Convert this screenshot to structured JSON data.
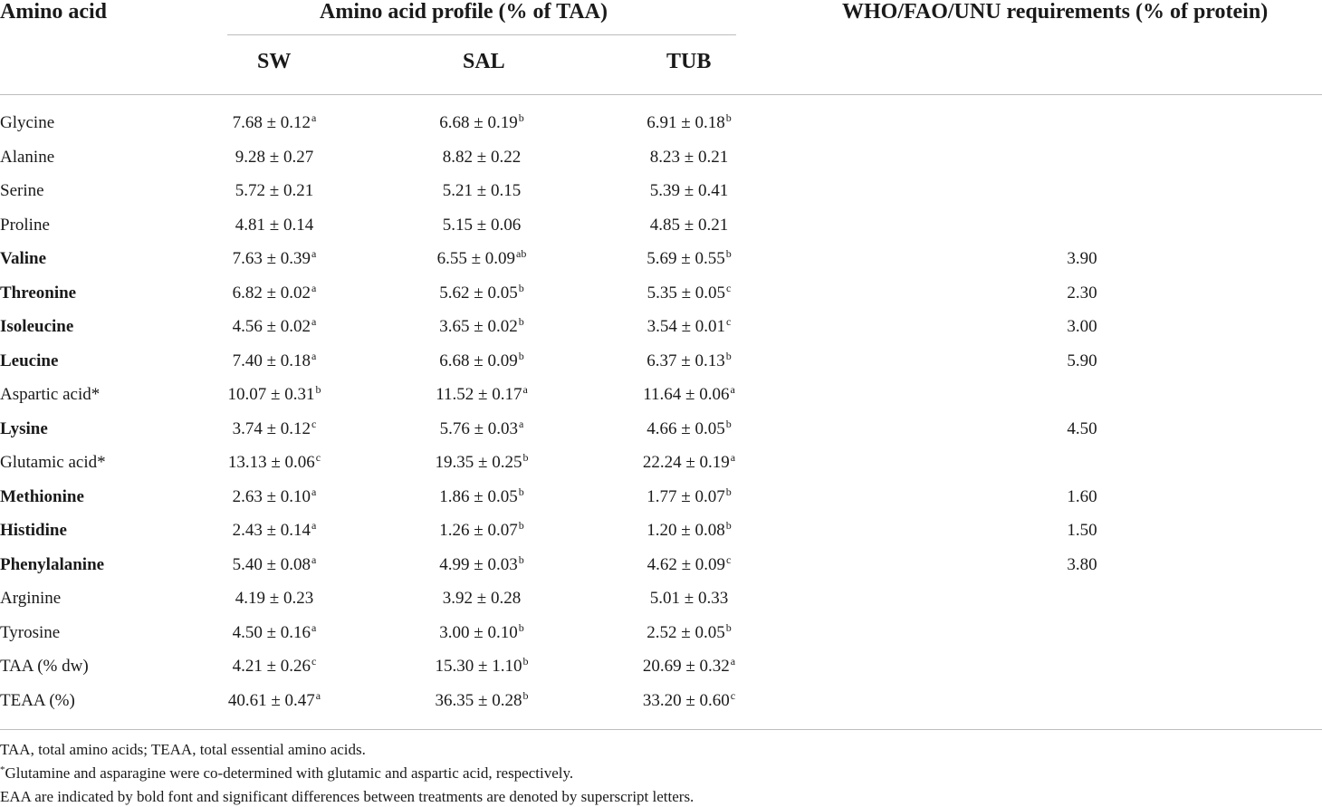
{
  "header": {
    "col_amino": "Amino acid",
    "col_profile": "Amino acid profile (% of TAA)",
    "col_who": "WHO/FAO/UNU requirements (% of protein)",
    "sub_sw": "SW",
    "sub_sal": "SAL",
    "sub_tub": "TUB"
  },
  "rows": [
    {
      "name": "Glycine",
      "bold": false,
      "sw": "7.68 ± 0.12",
      "sw_sup": "a",
      "sal": "6.68 ± 0.19",
      "sal_sup": "b",
      "tub": "6.91 ± 0.18",
      "tub_sup": "b",
      "req": ""
    },
    {
      "name": "Alanine",
      "bold": false,
      "sw": "9.28 ± 0.27",
      "sw_sup": "",
      "sal": "8.82 ± 0.22",
      "sal_sup": "",
      "tub": "8.23 ± 0.21",
      "tub_sup": "",
      "req": ""
    },
    {
      "name": "Serine",
      "bold": false,
      "sw": "5.72 ± 0.21",
      "sw_sup": "",
      "sal": "5.21 ± 0.15",
      "sal_sup": "",
      "tub": "5.39 ± 0.41",
      "tub_sup": "",
      "req": ""
    },
    {
      "name": "Proline",
      "bold": false,
      "sw": "4.81 ± 0.14",
      "sw_sup": "",
      "sal": "5.15 ± 0.06",
      "sal_sup": "",
      "tub": "4.85 ± 0.21",
      "tub_sup": "",
      "req": ""
    },
    {
      "name": "Valine",
      "bold": true,
      "sw": "7.63 ± 0.39",
      "sw_sup": "a",
      "sal": "6.55 ± 0.09",
      "sal_sup": "ab",
      "tub": "5.69 ± 0.55",
      "tub_sup": "b",
      "req": "3.90"
    },
    {
      "name": "Threonine",
      "bold": true,
      "sw": "6.82 ± 0.02",
      "sw_sup": "a",
      "sal": "5.62 ± 0.05",
      "sal_sup": "b",
      "tub": "5.35 ± 0.05",
      "tub_sup": "c",
      "req": "2.30"
    },
    {
      "name": "Isoleucine",
      "bold": true,
      "sw": "4.56 ± 0.02",
      "sw_sup": "a",
      "sal": "3.65 ± 0.02",
      "sal_sup": "b",
      "tub": "3.54 ± 0.01",
      "tub_sup": "c",
      "req": "3.00"
    },
    {
      "name": "Leucine",
      "bold": true,
      "sw": "7.40 ± 0.18",
      "sw_sup": "a",
      "sal": "6.68 ± 0.09",
      "sal_sup": "b",
      "tub": "6.37 ± 0.13",
      "tub_sup": "b",
      "req": "5.90"
    },
    {
      "name": "Aspartic acid*",
      "bold": false,
      "sw": "10.07 ± 0.31",
      "sw_sup": "b",
      "sal": "11.52 ± 0.17",
      "sal_sup": "a",
      "tub": "11.64 ± 0.06",
      "tub_sup": "a",
      "req": ""
    },
    {
      "name": "Lysine",
      "bold": true,
      "sw": "3.74 ± 0.12",
      "sw_sup": "c",
      "sal": "5.76 ± 0.03",
      "sal_sup": "a",
      "tub": "4.66 ± 0.05",
      "tub_sup": "b",
      "req": "4.50"
    },
    {
      "name": "Glutamic acid*",
      "bold": false,
      "sw": "13.13 ± 0.06",
      "sw_sup": "c",
      "sal": "19.35 ± 0.25",
      "sal_sup": "b",
      "tub": "22.24 ± 0.19",
      "tub_sup": "a",
      "req": ""
    },
    {
      "name": "Methionine",
      "bold": true,
      "sw": "2.63 ± 0.10",
      "sw_sup": "a",
      "sal": "1.86 ± 0.05",
      "sal_sup": "b",
      "tub": "1.77 ± 0.07",
      "tub_sup": "b",
      "req": "1.60"
    },
    {
      "name": "Histidine",
      "bold": true,
      "sw": "2.43 ± 0.14",
      "sw_sup": "a",
      "sal": "1.26 ± 0.07",
      "sal_sup": "b",
      "tub": "1.20 ± 0.08",
      "tub_sup": "b",
      "req": "1.50"
    },
    {
      "name": "Phenylalanine",
      "bold": true,
      "sw": "5.40 ± 0.08",
      "sw_sup": "a",
      "sal": "4.99 ± 0.03",
      "sal_sup": "b",
      "tub": "4.62 ± 0.09",
      "tub_sup": "c",
      "req": "3.80"
    },
    {
      "name": "Arginine",
      "bold": false,
      "sw": "4.19 ± 0.23",
      "sw_sup": "",
      "sal": "3.92 ± 0.28",
      "sal_sup": "",
      "tub": "5.01 ± 0.33",
      "tub_sup": "",
      "req": ""
    },
    {
      "name": "Tyrosine",
      "bold": false,
      "sw": "4.50 ± 0.16",
      "sw_sup": "a",
      "sal": "3.00 ± 0.10",
      "sal_sup": "b",
      "tub": "2.52 ± 0.05",
      "tub_sup": "b",
      "req": ""
    },
    {
      "name": "TAA (% dw)",
      "bold": false,
      "sw": "4.21 ± 0.26",
      "sw_sup": "c",
      "sal": "15.30 ± 1.10",
      "sal_sup": "b",
      "tub": "20.69 ± 0.32",
      "tub_sup": "a",
      "req": ""
    },
    {
      "name": "TEAA (%)",
      "bold": false,
      "sw": "40.61 ± 0.47",
      "sw_sup": "a",
      "sal": "36.35 ± 0.28",
      "sal_sup": "b",
      "tub": "33.20 ± 0.60",
      "tub_sup": "c",
      "req": ""
    }
  ],
  "footnotes": {
    "line1": "TAA, total amino acids; TEAA, total essential amino acids.",
    "line2_mark": "*",
    "line2": "Glutamine and asparagine were co-determined with glutamic and aspartic acid, respectively.",
    "line3": "EAA are indicated by bold font and significant differences between treatments are denoted by superscript letters."
  }
}
